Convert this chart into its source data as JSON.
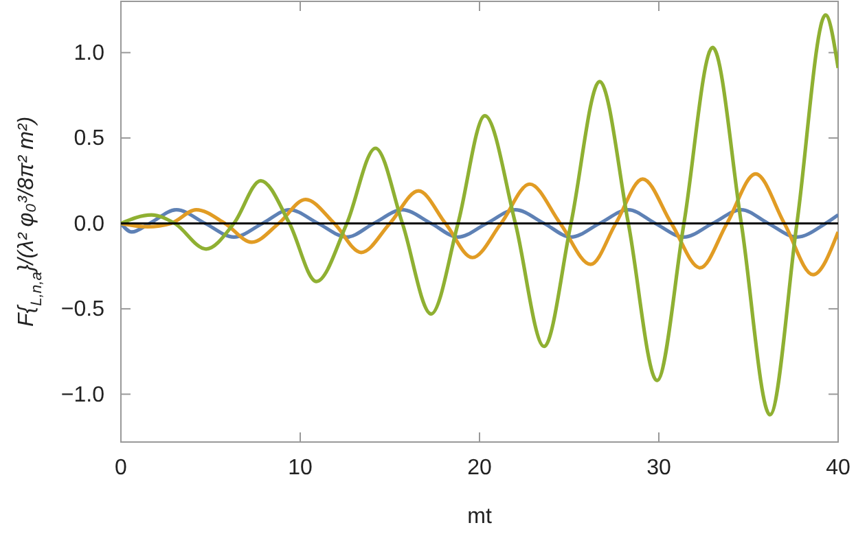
{
  "chart_data": {
    "type": "line",
    "xlabel": "mt",
    "ylabel": "F{$_{L,n,a}$}/(λ² φ₀³/8π² m²)",
    "xlim": [
      0,
      40
    ],
    "ylim": [
      -1.28,
      1.3
    ],
    "xticks": [
      0,
      10,
      20,
      30,
      40
    ],
    "yticks": [
      {
        "value": -1,
        "label": "−1.0"
      },
      {
        "value": -0.5,
        "label": "−0.5"
      },
      {
        "value": 0,
        "label": "0.0"
      },
      {
        "value": 0.5,
        "label": "0.5"
      },
      {
        "value": 1,
        "label": "1.0"
      }
    ],
    "grid": false,
    "line_style": "solid",
    "marker": "none",
    "ref_lines": [
      {
        "axis": "y",
        "value": 0,
        "color": "#000000"
      }
    ],
    "series": [
      {
        "color": "#5e81b5",
        "x": [
          0,
          0.6,
          1.6,
          3.1,
          4.7,
          6.3,
          7.9,
          9.4,
          11,
          12.6,
          14.1,
          15.7,
          17.3,
          18.8,
          20.4,
          22,
          23.6,
          25.1,
          26.7,
          28.3,
          29.8,
          31.4,
          33,
          34.6,
          36.1,
          37.7,
          39.3,
          40
        ],
        "values": [
          0,
          -0.05,
          0,
          0.08,
          0,
          -0.08,
          0,
          0.08,
          0,
          -0.08,
          0,
          0.08,
          0,
          -0.08,
          0,
          0.08,
          0,
          -0.08,
          0,
          0.08,
          0,
          -0.08,
          0,
          0.08,
          0,
          -0.08,
          0,
          0.05
        ]
      },
      {
        "color": "#e19c24",
        "x": [
          0,
          1.5,
          2.8,
          4.2,
          5.8,
          7.3,
          8.8,
          10.3,
          11.9,
          13.4,
          15,
          16.6,
          18.1,
          19.6,
          21.2,
          22.8,
          24.5,
          26.2,
          27.6,
          29.1,
          30.7,
          32.3,
          33.8,
          35.4,
          37,
          38.6,
          40
        ],
        "values": [
          0,
          -0.02,
          0,
          0.08,
          0,
          -0.11,
          0,
          0.14,
          0,
          -0.17,
          0,
          0.19,
          0,
          -0.2,
          0,
          0.23,
          0,
          -0.24,
          0,
          0.26,
          0,
          -0.26,
          0,
          0.29,
          0,
          -0.3,
          -0.05
        ]
      },
      {
        "color": "#8fb032",
        "x": [
          0,
          1.7,
          3,
          4.75,
          6.3,
          7.8,
          9.4,
          10.9,
          12.6,
          14.2,
          15.7,
          17.3,
          18.8,
          20.3,
          22,
          23.6,
          25.1,
          26.7,
          28.3,
          29.9,
          31.4,
          33,
          34.6,
          36.2,
          37.7,
          39.3,
          40
        ],
        "values": [
          0,
          0.05,
          0,
          -0.15,
          0,
          0.25,
          0,
          -0.34,
          0,
          0.44,
          0,
          -0.53,
          0,
          0.63,
          0,
          -0.72,
          0,
          0.83,
          0,
          -0.92,
          0,
          1.03,
          0,
          -1.12,
          0,
          1.22,
          0.91
        ]
      }
    ]
  }
}
